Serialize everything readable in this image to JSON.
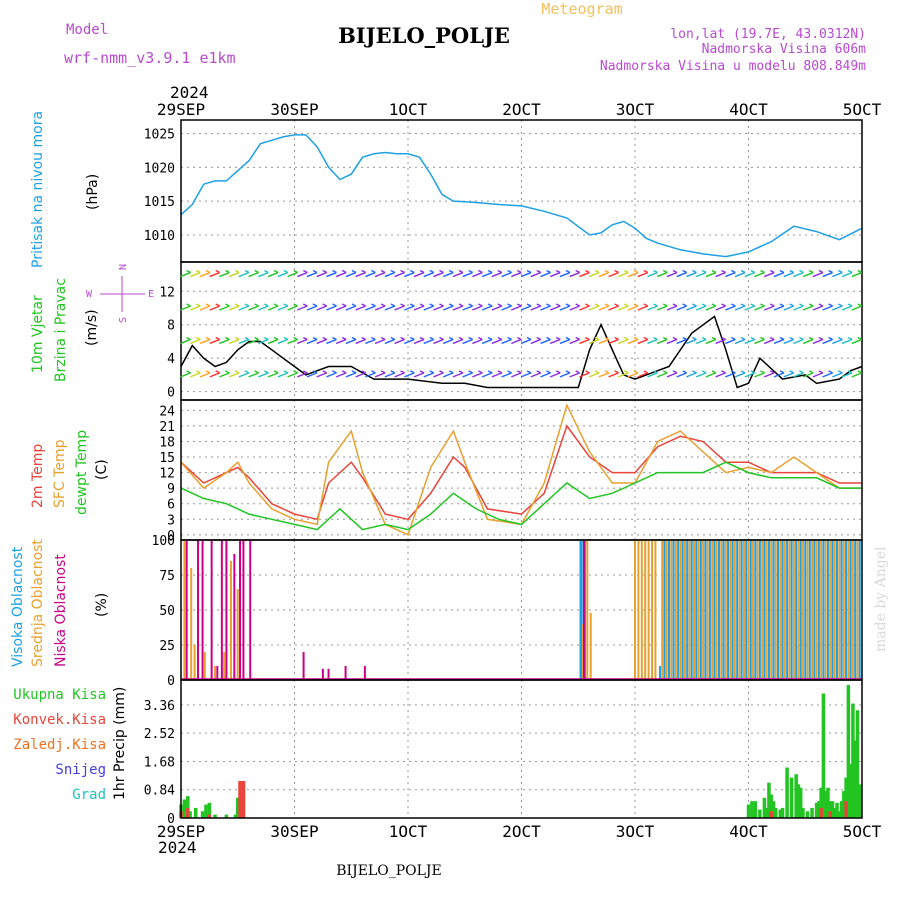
{
  "header": {
    "model_label": "Model",
    "model_name": "wrf-nmm_v3.9.1 e1km",
    "subtitle": "Meteogram",
    "station": "BIJELO_POLJE",
    "lonlat": "lon,lat (19.7E, 43.0312N)",
    "elevation": "Nadmorska Visina 606m",
    "model_elevation": "Nadmorska Visina u modelu 808.849m",
    "year_top": "2024",
    "year_bottom": "2024",
    "footer_station": "BIJELO_POLJE",
    "credit": "made by Angel"
  },
  "x_axis": {
    "ticks": [
      "29SEP",
      "30SEP",
      "1OCT",
      "2OCT",
      "3OCT",
      "4OCT",
      "5OCT"
    ],
    "tick_positions_days": [
      0,
      1,
      2,
      3,
      4,
      5,
      6
    ],
    "range_days": [
      0,
      6
    ]
  },
  "panel_labels": {
    "pressure": [
      "Pritisak na nivou mora",
      "(hPa)"
    ],
    "wind": [
      "10m Vjetar",
      "Brzina i Pravac",
      "(m/s)"
    ],
    "compass": [
      "N",
      "W",
      "E",
      "S"
    ],
    "temp": [
      "2m Temp",
      "SFC Temp",
      "dewpt Temp",
      "(C)"
    ],
    "cloud": [
      "Visoka Oblacnost",
      "Srednja Oblacnost",
      "Niska Oblacnost",
      "(%)"
    ],
    "precip_legend": [
      "Ukupna Kisa",
      "Konvek.Kisa",
      "Zaledj.Kisa",
      "Snijeg",
      "Grad"
    ],
    "precip_unit": "1hr Precip (mm)"
  },
  "colors": {
    "pressure": "#1ea0e6",
    "wind_speed": "#000000",
    "wind_gust": "#ff3030",
    "t2m": "#e8443a",
    "tsfc": "#e8a030",
    "dewpt": "#22c422",
    "cloud_high": "#1ea0e6",
    "cloud_mid": "#e8a030",
    "cloud_low": "#cc0088",
    "rain_total": "#22c422",
    "rain_conv": "#e8443a",
    "legend_model": "#b84ad0",
    "legend_snow": "#4040e0",
    "legend_grad": "#20c0c0",
    "legend_freeze": "#f07020"
  },
  "chart_data": [
    {
      "type": "line",
      "ylabel": "(hPa)",
      "ylim": [
        1006,
        1027
      ],
      "y_ticks": [
        1010,
        1015,
        1020,
        1025
      ],
      "grid": true,
      "series": [
        {
          "name": "Pritisak na nivou mora",
          "x": [
            0,
            0.1,
            0.2,
            0.3,
            0.4,
            0.5,
            0.6,
            0.7,
            0.8,
            0.9,
            1.0,
            1.1,
            1.2,
            1.3,
            1.4,
            1.5,
            1.6,
            1.7,
            1.8,
            1.9,
            2.0,
            2.1,
            2.2,
            2.3,
            2.4,
            2.5,
            2.6,
            2.8,
            3.0,
            3.2,
            3.4,
            3.6,
            3.7,
            3.8,
            3.9,
            4.0,
            4.1,
            4.2,
            4.4,
            4.6,
            4.8,
            5.0,
            5.2,
            5.4,
            5.6,
            5.8,
            6.0
          ],
          "values": [
            1013,
            1014.5,
            1017.5,
            1018,
            1018,
            1019.5,
            1021,
            1023.5,
            1024,
            1024.5,
            1024.8,
            1024.8,
            1023,
            1020,
            1018.2,
            1019,
            1021.5,
            1022,
            1022.2,
            1022,
            1022,
            1021.5,
            1019,
            1016,
            1015,
            1014.9,
            1014.8,
            1014.5,
            1014.3,
            1013.5,
            1012.5,
            1010,
            1010.3,
            1011.5,
            1012,
            1011,
            1009.5,
            1008.8,
            1007.8,
            1007.2,
            1006.8,
            1007.5,
            1009,
            1011.3,
            1010.5,
            1009.3,
            1011
          ]
        }
      ]
    },
    {
      "type": "line",
      "ylabel": "(m/s)",
      "ylim": [
        -1,
        15.5
      ],
      "y_ticks": [
        0,
        4,
        8,
        12
      ],
      "grid": true,
      "series": [
        {
          "name": "10m Vjetar",
          "x": [
            0,
            0.1,
            0.2,
            0.3,
            0.4,
            0.5,
            0.6,
            0.7,
            0.8,
            0.9,
            1.0,
            1.1,
            1.2,
            1.3,
            1.5,
            1.7,
            2.0,
            2.3,
            2.5,
            2.7,
            3.0,
            3.2,
            3.5,
            3.6,
            3.7,
            3.8,
            3.9,
            4.0,
            4.1,
            4.3,
            4.5,
            4.7,
            4.8,
            4.9,
            5.0,
            5.1,
            5.3,
            5.5,
            5.6,
            5.8,
            5.9,
            6.0
          ],
          "values": [
            3,
            5.5,
            4,
            3,
            3.5,
            5,
            6,
            6,
            5,
            4,
            3,
            2,
            2.5,
            3,
            3,
            1.5,
            1.5,
            1,
            1,
            0.5,
            0.5,
            0.5,
            0.5,
            5,
            8,
            5,
            2,
            1.5,
            2,
            3,
            7,
            9,
            5,
            0.5,
            1,
            4,
            1.5,
            2,
            1,
            1.5,
            2.5,
            3
          ]
        }
      ]
    },
    {
      "type": "line",
      "ylabel": "(C)",
      "ylim": [
        -1,
        26
      ],
      "y_ticks": [
        0,
        3,
        6,
        9,
        12,
        15,
        18,
        21,
        24
      ],
      "grid": true,
      "series": [
        {
          "name": "2m Temp",
          "x": [
            0,
            0.2,
            0.4,
            0.5,
            0.6,
            0.8,
            1.0,
            1.2,
            1.3,
            1.5,
            1.6,
            1.8,
            2.0,
            2.2,
            2.4,
            2.5,
            2.7,
            3.0,
            3.2,
            3.4,
            3.6,
            3.8,
            4.0,
            4.2,
            4.4,
            4.6,
            4.8,
            5.0,
            5.2,
            5.4,
            5.6,
            5.8,
            6.0
          ],
          "values": [
            14,
            10,
            12,
            13,
            11,
            6,
            4,
            3,
            10,
            14,
            11,
            4,
            3,
            8,
            15,
            13,
            5,
            4,
            8,
            21,
            15,
            12,
            12,
            17,
            19,
            18,
            14,
            14,
            12,
            12,
            12,
            10,
            10
          ]
        },
        {
          "name": "SFC Temp",
          "x": [
            0,
            0.2,
            0.4,
            0.5,
            0.6,
            0.8,
            1.0,
            1.2,
            1.3,
            1.5,
            1.6,
            1.8,
            2.0,
            2.2,
            2.4,
            2.5,
            2.7,
            3.0,
            3.2,
            3.4,
            3.6,
            3.8,
            4.0,
            4.2,
            4.4,
            4.6,
            4.8,
            5.0,
            5.2,
            5.4,
            5.6,
            5.8,
            6.0
          ],
          "values": [
            14,
            9,
            12,
            14,
            10,
            5,
            3,
            2,
            14,
            20,
            12,
            2,
            0,
            13,
            20,
            14,
            3,
            2,
            10,
            25,
            16,
            10,
            10,
            18,
            20,
            16,
            12,
            13,
            12,
            15,
            12,
            9,
            9
          ]
        },
        {
          "name": "dewpt Temp",
          "x": [
            0,
            0.2,
            0.4,
            0.6,
            0.8,
            1.0,
            1.2,
            1.4,
            1.6,
            1.8,
            2.0,
            2.2,
            2.4,
            2.6,
            2.8,
            3.0,
            3.2,
            3.4,
            3.6,
            3.8,
            4.0,
            4.2,
            4.4,
            4.6,
            4.8,
            5.0,
            5.2,
            5.4,
            5.6,
            5.8,
            6.0
          ],
          "values": [
            9,
            7,
            6,
            4,
            3,
            2,
            1,
            5,
            1,
            2,
            1,
            4,
            8,
            5,
            3,
            2,
            6,
            10,
            7,
            8,
            10,
            12,
            12,
            12,
            14,
            12,
            11,
            11,
            11,
            9,
            9
          ]
        }
      ]
    },
    {
      "type": "bar",
      "ylabel": "(%)",
      "ylim": [
        0,
        100
      ],
      "y_ticks": [
        0,
        25,
        50,
        75,
        100
      ],
      "grid": true,
      "series": [
        {
          "name": "Visoka Oblacnost",
          "x": [
            3.52,
            3.53,
            3.56,
            4.22,
            4.26,
            4.3,
            4.34,
            4.38,
            4.42,
            4.46,
            4.5,
            4.54,
            4.58,
            4.62,
            4.66,
            4.7,
            4.74,
            4.78,
            4.82,
            4.86,
            4.9,
            4.94,
            4.98,
            5.02,
            5.06,
            5.1,
            5.14,
            5.18,
            5.22,
            5.26,
            5.3,
            5.34,
            5.38,
            5.42,
            5.46,
            5.5,
            5.54,
            5.58,
            5.62,
            5.66,
            5.7,
            5.74,
            5.78,
            5.82,
            5.86,
            5.9,
            5.94,
            5.98
          ],
          "values": [
            100,
            100,
            100,
            10,
            100,
            100,
            100,
            100,
            100,
            100,
            100,
            100,
            100,
            100,
            100,
            100,
            100,
            100,
            100,
            100,
            100,
            100,
            100,
            100,
            100,
            100,
            100,
            100,
            100,
            100,
            100,
            100,
            100,
            100,
            100,
            100,
            100,
            100,
            100,
            100,
            100,
            100,
            100,
            100,
            100,
            100,
            100,
            100
          ]
        },
        {
          "name": "Srednja Oblacnost",
          "x": [
            0.03,
            0.09,
            0.12,
            0.21,
            0.3,
            0.38,
            0.44,
            0.5,
            3.54,
            3.58,
            3.61,
            4.0,
            4.03,
            4.06,
            4.09,
            4.12,
            4.15,
            4.18,
            4.24,
            4.28,
            4.32,
            4.36,
            4.4,
            4.44,
            4.48,
            4.52,
            4.56,
            4.6,
            4.64,
            4.68,
            4.72,
            4.76,
            4.8,
            4.84,
            4.88,
            4.92,
            4.96,
            5.0,
            5.04,
            5.08,
            5.12,
            5.16,
            5.2,
            5.24,
            5.28,
            5.32,
            5.36,
            5.4,
            5.44,
            5.48,
            5.52,
            5.56,
            5.6,
            5.64,
            5.68,
            5.72,
            5.76,
            5.8,
            5.84,
            5.88,
            5.92,
            5.96
          ],
          "values": [
            100,
            80,
            25,
            20,
            10,
            20,
            85,
            65,
            40,
            100,
            48,
            100,
            100,
            100,
            100,
            100,
            100,
            100,
            100,
            100,
            100,
            100,
            100,
            100,
            100,
            100,
            100,
            100,
            100,
            100,
            100,
            100,
            100,
            100,
            100,
            100,
            100,
            100,
            100,
            100,
            100,
            100,
            100,
            100,
            100,
            100,
            100,
            100,
            100,
            100,
            100,
            100,
            100,
            100,
            100,
            100,
            100,
            100,
            100,
            100,
            100,
            100
          ]
        },
        {
          "name": "Niska Oblacnost",
          "x": [
            0.05,
            0.15,
            0.19,
            0.27,
            0.32,
            0.36,
            0.4,
            0.47,
            0.52,
            0.55,
            0.61,
            1.08,
            1.25,
            1.3,
            1.45,
            1.62,
            3.55
          ],
          "values": [
            100,
            100,
            100,
            100,
            10,
            100,
            100,
            90,
            100,
            100,
            100,
            20,
            8,
            8,
            10,
            10,
            100
          ]
        }
      ]
    },
    {
      "type": "bar",
      "ylabel": "1hr Precip (mm)",
      "ylim": [
        0,
        4.1
      ],
      "y_ticks": [
        0,
        0.84,
        1.68,
        2.52,
        3.36
      ],
      "grid": true,
      "series": [
        {
          "name": "Ukupna Kisa",
          "x": [
            0.0,
            0.03,
            0.06,
            0.08,
            0.13,
            0.19,
            0.22,
            0.25,
            0.3,
            0.4,
            0.48,
            0.5,
            0.55,
            5.0,
            5.03,
            5.06,
            5.1,
            5.14,
            5.16,
            5.18,
            5.2,
            5.22,
            5.24,
            5.28,
            5.3,
            5.34,
            5.38,
            5.42,
            5.44,
            5.46,
            5.48,
            5.52,
            5.56,
            5.6,
            5.62,
            5.64,
            5.66,
            5.68,
            5.7,
            5.72,
            5.74,
            5.76,
            5.78,
            5.8,
            5.82,
            5.84,
            5.86,
            5.88,
            5.9,
            5.92,
            5.94,
            5.96,
            5.98
          ],
          "values": [
            0.4,
            0.55,
            0.65,
            0.2,
            0.3,
            0.2,
            0.4,
            0.45,
            0.1,
            0.1,
            0.1,
            0.6,
            1.1,
            0.4,
            0.5,
            0.5,
            0.25,
            0.6,
            0.3,
            1.05,
            0.7,
            0.5,
            0.3,
            0.25,
            0.3,
            1.5,
            1.2,
            1.3,
            1.0,
            0.9,
            0.3,
            0.2,
            0.3,
            0.45,
            0.5,
            0.9,
            3.7,
            0.8,
            0.9,
            0.5,
            0.5,
            0.3,
            0.45,
            0.2,
            0.5,
            0.8,
            1.2,
            3.95,
            1.6,
            3.4,
            2.3,
            3.2,
            1.0
          ]
        },
        {
          "name": "Konvek.Kisa",
          "x": [
            0.0,
            0.06,
            0.25,
            0.52,
            0.55,
            5.2,
            5.64,
            5.72,
            5.86
          ],
          "values": [
            0.2,
            0.3,
            0.1,
            1.1,
            1.1,
            0.2,
            0.3,
            0.2,
            0.5
          ]
        }
      ]
    }
  ]
}
